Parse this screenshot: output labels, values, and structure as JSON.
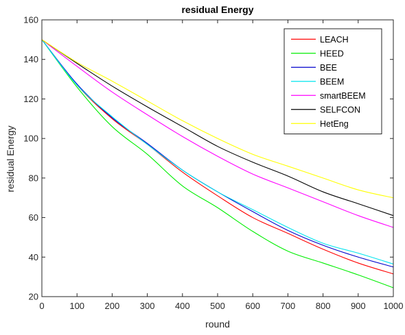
{
  "chart_data": {
    "type": "line",
    "title": "residual Energy",
    "xlabel": "round",
    "ylabel": "residual Energy",
    "xlim": [
      0,
      1000
    ],
    "ylim": [
      20,
      160
    ],
    "xticks": [
      0,
      100,
      200,
      300,
      400,
      500,
      600,
      700,
      800,
      900,
      1000
    ],
    "yticks": [
      20,
      40,
      60,
      80,
      100,
      120,
      140,
      160
    ],
    "grid": false,
    "legend_position": "top-right",
    "x": [
      0,
      100,
      200,
      300,
      400,
      500,
      600,
      700,
      800,
      900,
      1000
    ],
    "series": [
      {
        "name": "LEACH",
        "color": "#ff0000",
        "values": [
          150,
          127,
          110,
          97,
          83,
          71,
          60,
          52,
          44,
          37,
          31.5
        ]
      },
      {
        "name": "HEED",
        "color": "#00ee00",
        "values": [
          150,
          126,
          106,
          92,
          76,
          65,
          53,
          43,
          37,
          31,
          24.5
        ]
      },
      {
        "name": "BEE",
        "color": "#0000cc",
        "values": [
          150,
          127.5,
          110.5,
          97.5,
          84,
          73,
          63,
          53.5,
          46,
          40,
          35
        ]
      },
      {
        "name": "BEEM",
        "color": "#00e5ee",
        "values": [
          150,
          127,
          111,
          97,
          84,
          73,
          64,
          55,
          47,
          42,
          36.5
        ]
      },
      {
        "name": "smartBEEM",
        "color": "#ff00ff",
        "values": [
          150,
          136.5,
          123.5,
          112,
          101,
          91,
          82,
          75,
          68,
          61,
          55
        ]
      },
      {
        "name": "SELFCON",
        "color": "#000000",
        "values": [
          150,
          138,
          126.5,
          116,
          106,
          96,
          88,
          81,
          73,
          67,
          61
        ]
      },
      {
        "name": "HetEng",
        "color": "#ffff00",
        "values": [
          150,
          138.5,
          129,
          119,
          109,
          100,
          92,
          86,
          80,
          74,
          70
        ]
      }
    ]
  }
}
